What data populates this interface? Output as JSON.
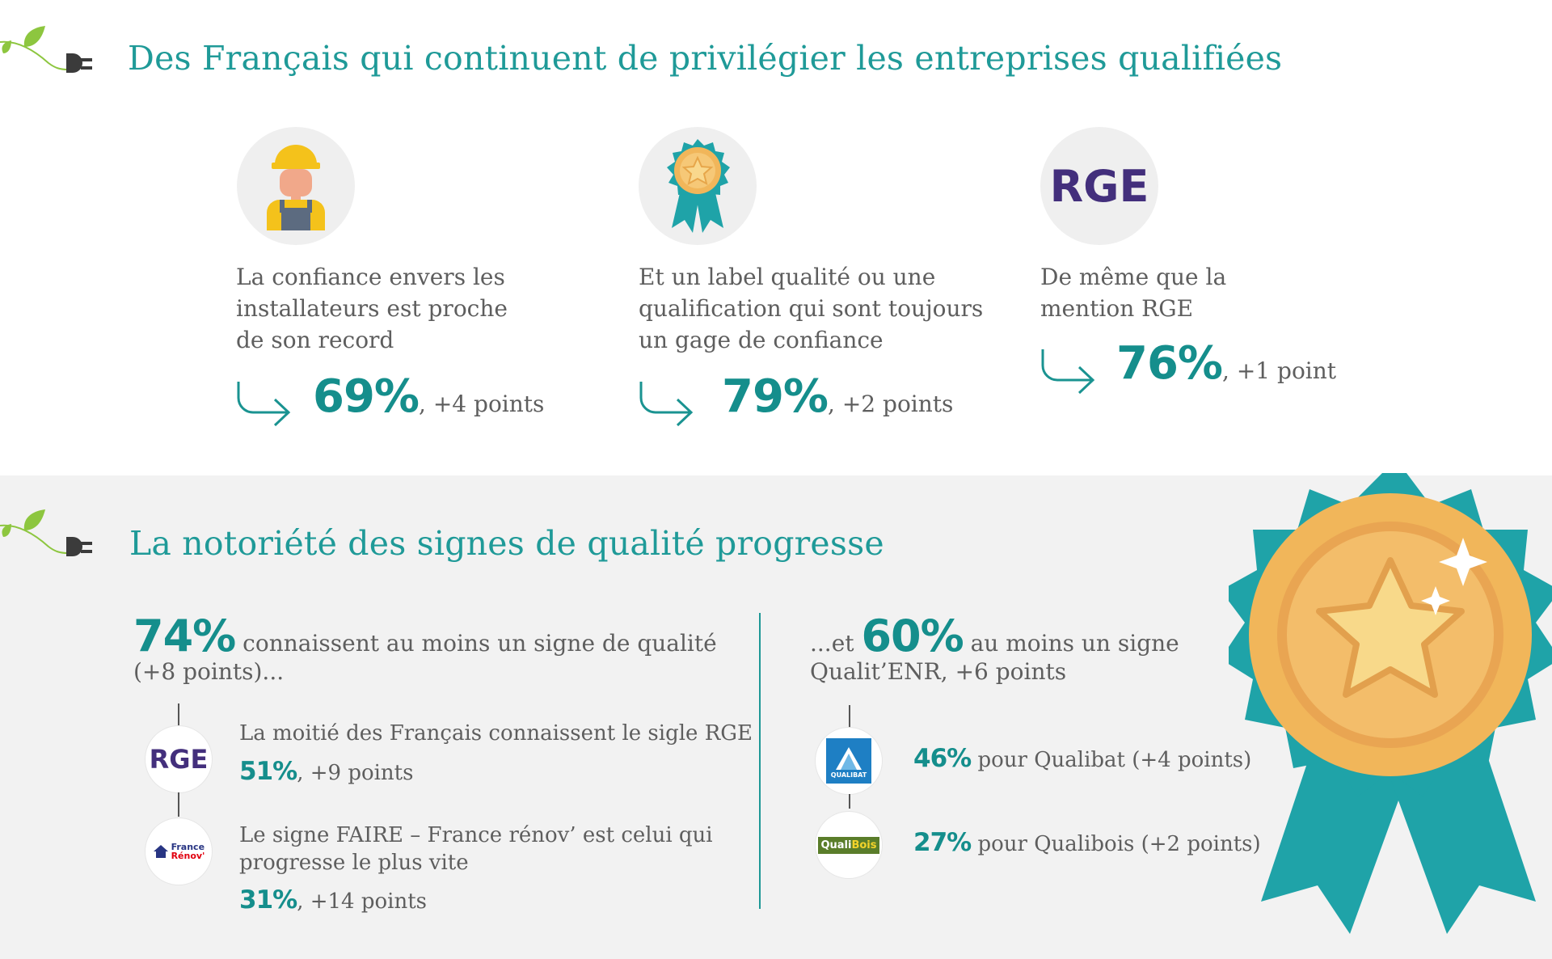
{
  "section1": {
    "title": "Des Français qui continuent de privilégier les entreprises qualifiées",
    "items": [
      {
        "icon": "worker-icon",
        "text_lines": [
          "La confiance envers les",
          "installateurs est proche",
          "de son record"
        ],
        "value": "69%",
        "suffix": ", +4 points"
      },
      {
        "icon": "award-ribbon-icon",
        "text_lines": [
          "Et un label qualité ou une",
          "qualification qui sont toujours",
          "un gage de confiance"
        ],
        "value": "79%",
        "suffix": ", +2 points"
      },
      {
        "icon": "rge-logo",
        "logo_text": "RGE",
        "text_lines": [
          "De même que la",
          "mention RGE"
        ],
        "value": "76%",
        "suffix": ", +1 point"
      }
    ]
  },
  "section2": {
    "title": "La notoriété des signes de qualité progresse",
    "left": {
      "headline_value": "74%",
      "headline_text": " connaissent au moins un signe de qualité",
      "headline_line2": "(+8 points)...",
      "items": [
        {
          "logo": "RGE",
          "text_lines": [
            "La moitié des Français connaissent le sigle RGE"
          ],
          "value": "51%",
          "suffix": ", +9 points"
        },
        {
          "logo_line1": "France",
          "logo_line2": "Rénov'",
          "text_lines": [
            "Le signe FAIRE – France rénov’ est celui qui",
            "progresse le plus vite"
          ],
          "value": "31%",
          "suffix": ", +14 points"
        }
      ]
    },
    "right": {
      "headline_prefix": "...et ",
      "headline_value": "60%",
      "headline_text": " au moins un signe",
      "headline_line2": "Qualit’ENR, +6 points",
      "items": [
        {
          "logo": "QUALIBAT",
          "value": "46%",
          "suffix": " pour Qualibat (+4 points)"
        },
        {
          "logo_a": "Quali",
          "logo_b": "Bois",
          "value": "27%",
          "suffix": " pour Qualibois (+2 points)"
        }
      ]
    }
  },
  "colors": {
    "teal": "#1a9391",
    "rge_purple": "#432f7c",
    "band": "#f2f2f2",
    "medal_gold": "#f1b65a",
    "ribbon": "#1fa3a8"
  }
}
